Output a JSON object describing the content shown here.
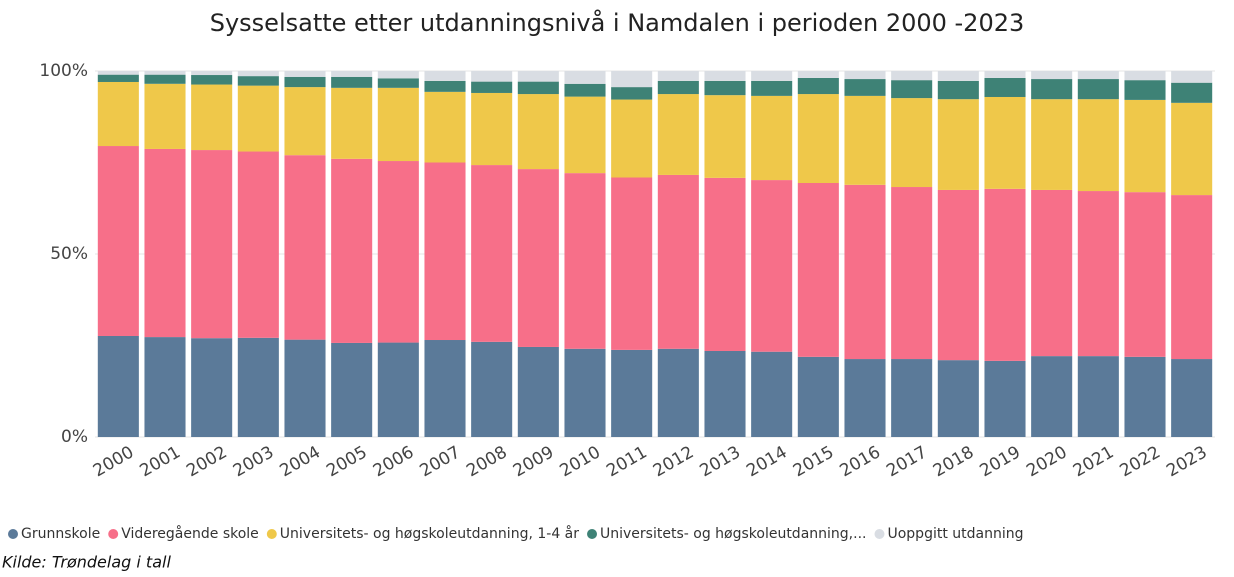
{
  "chart_data": {
    "type": "stacked_bar",
    "title": "Sysselsatte etter utdanningsnivå i Namdalen i perioden 2000 -2023",
    "source": "Kilde: Trøndelag i tall",
    "categories": [
      "2000",
      "2001",
      "2002",
      "2003",
      "2004",
      "2005",
      "2006",
      "2007",
      "2008",
      "2009",
      "2010",
      "2011",
      "2012",
      "2013",
      "2014",
      "2015",
      "2016",
      "2017",
      "2018",
      "2019",
      "2020",
      "2021",
      "2022",
      "2023"
    ],
    "ylim": [
      0,
      100
    ],
    "yticks": [
      {
        "value": 0,
        "label": "0%"
      },
      {
        "value": 50,
        "label": "50%"
      },
      {
        "value": 100,
        "label": "100%"
      }
    ],
    "grid": true,
    "legend": "bottom",
    "series": [
      {
        "name": "Grunnskole",
        "color": "#5b7a99",
        "values": [
          27.6,
          27.3,
          27.0,
          27.1,
          26.6,
          25.7,
          25.8,
          26.5,
          26.0,
          24.6,
          24.1,
          23.8,
          24.1,
          23.5,
          23.3,
          21.9,
          21.3,
          21.3,
          21.0,
          20.8,
          22.1,
          22.1,
          21.9,
          21.3
        ]
      },
      {
        "name": "Videregående skole",
        "color": "#f76f89",
        "values": [
          51.9,
          51.4,
          51.4,
          50.9,
          50.4,
          50.3,
          49.6,
          48.5,
          48.3,
          48.6,
          48.0,
          47.1,
          47.5,
          47.3,
          46.9,
          47.5,
          47.6,
          47.0,
          46.5,
          47.0,
          45.4,
          45.1,
          45.0,
          44.8
        ]
      },
      {
        "name": "Universitets- og høgskoleutdanning, 1-4 år",
        "color": "#efc84a",
        "values": [
          17.5,
          17.8,
          17.9,
          18.0,
          18.6,
          19.4,
          20.0,
          19.3,
          19.7,
          20.5,
          20.9,
          21.3,
          22.1,
          22.6,
          23.0,
          24.3,
          24.3,
          24.3,
          24.8,
          25.1,
          24.8,
          25.1,
          25.2,
          25.2
        ]
      },
      {
        "name": "Universitets- og høgskoleutdanning,...",
        "color": "#3e8276",
        "values": [
          2.0,
          2.5,
          2.6,
          2.6,
          2.8,
          3.0,
          2.6,
          3.0,
          3.1,
          3.4,
          3.5,
          3.4,
          3.6,
          3.9,
          4.1,
          4.4,
          4.6,
          4.9,
          5.0,
          5.2,
          5.5,
          5.5,
          5.4,
          5.5
        ]
      },
      {
        "name": "Uoppgitt utdanning",
        "color": "#d9dde3",
        "values": [
          1.0,
          1.0,
          1.1,
          1.4,
          1.6,
          1.6,
          2.0,
          2.7,
          2.9,
          2.9,
          3.5,
          4.4,
          2.7,
          2.7,
          2.7,
          1.9,
          2.2,
          2.5,
          2.7,
          1.9,
          2.2,
          2.2,
          2.5,
          3.2
        ]
      }
    ]
  }
}
